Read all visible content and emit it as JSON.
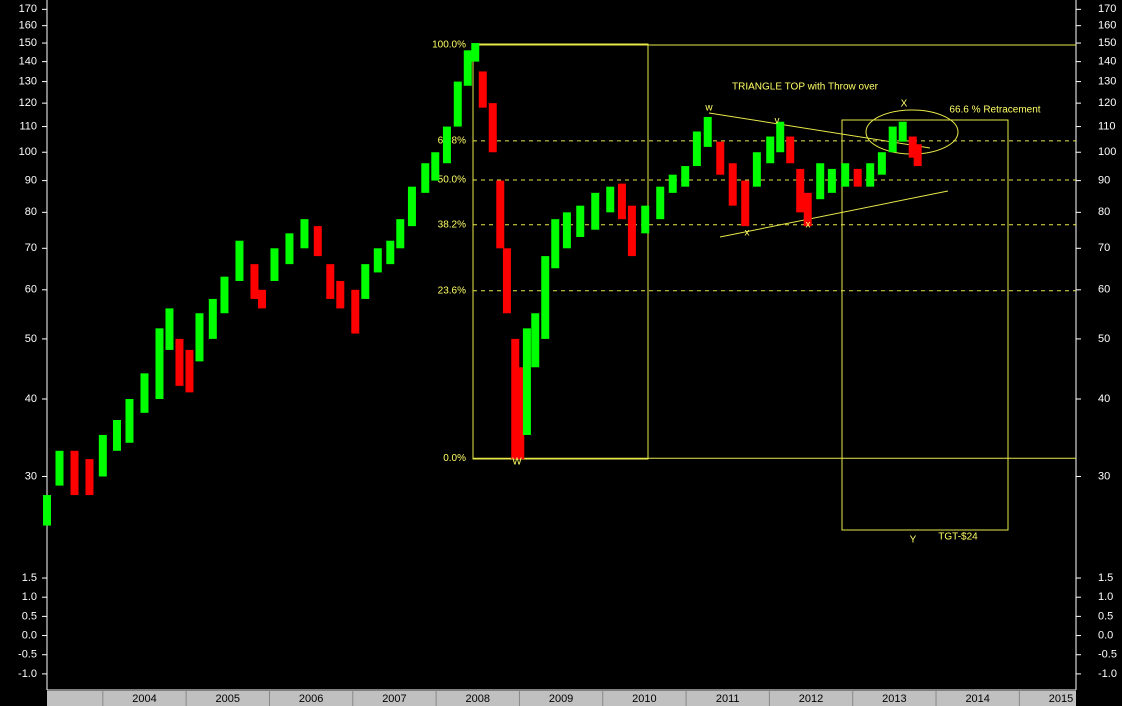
{
  "chart_data": [
    {
      "type": "ohlc",
      "log_scale": true,
      "up_color": "#00ff00",
      "down_color": "#ff0000",
      "annotation_color": "#ffff66",
      "xlim": [
        2003.33,
        2015.68
      ],
      "xticks": [
        2004,
        2005,
        2006,
        2007,
        2008,
        2009,
        2010,
        2011,
        2012,
        2013,
        2014,
        2015
      ],
      "ylim": [
        22,
        176
      ],
      "yticks": [
        30,
        40,
        50,
        60,
        70,
        80,
        90,
        100,
        110,
        120,
        130,
        140,
        150,
        160,
        170
      ],
      "x": [
        2003.33,
        2003.48,
        2003.66,
        2003.84,
        2004.0,
        2004.17,
        2004.32,
        2004.5,
        2004.68,
        2004.8,
        2004.92,
        2005.04,
        2005.16,
        2005.32,
        2005.46,
        2005.64,
        2005.82,
        2005.91,
        2006.06,
        2006.24,
        2006.42,
        2006.58,
        2006.73,
        2006.85,
        2007.03,
        2007.15,
        2007.3,
        2007.45,
        2007.57,
        2007.71,
        2007.87,
        2007.99,
        2008.13,
        2008.26,
        2008.38,
        2008.47,
        2008.56,
        2008.68,
        2008.77,
        2008.85,
        2008.95,
        2009.01,
        2009.09,
        2009.19,
        2009.31,
        2009.43,
        2009.57,
        2009.73,
        2009.91,
        2010.09,
        2010.23,
        2010.35,
        2010.51,
        2010.69,
        2010.84,
        2010.99,
        2011.13,
        2011.26,
        2011.41,
        2011.56,
        2011.71,
        2011.85,
        2012.01,
        2012.13,
        2012.25,
        2012.37,
        2012.46,
        2012.61,
        2012.75,
        2012.91,
        2013.06,
        2013.21,
        2013.35,
        2013.48,
        2013.6,
        2013.72,
        2013.78
      ],
      "high": [
        28,
        33,
        33,
        32,
        35,
        37,
        40,
        44,
        52,
        56,
        50,
        48,
        55,
        58,
        63,
        72,
        66,
        60,
        70,
        74,
        78,
        76,
        66,
        62,
        60,
        66,
        70,
        72,
        78,
        88,
        96,
        100,
        110,
        130,
        146,
        150,
        135,
        120,
        90,
        70,
        50,
        45,
        52,
        55,
        68,
        78,
        80,
        82,
        86,
        88,
        89,
        82,
        82,
        88,
        92,
        95,
        108,
        114,
        104,
        96,
        90,
        100,
        106,
        112,
        106,
        94,
        86,
        96,
        94,
        96,
        94,
        96,
        100,
        110,
        112,
        106,
        103
      ],
      "low": [
        25,
        29,
        28,
        28,
        30,
        33,
        34,
        38,
        40,
        48,
        42,
        41,
        46,
        50,
        55,
        62,
        58,
        56,
        62,
        66,
        70,
        68,
        58,
        56,
        51,
        58,
        64,
        66,
        70,
        76,
        86,
        90,
        96,
        110,
        128,
        140,
        118,
        100,
        70,
        55,
        32,
        32,
        35,
        45,
        50,
        65,
        70,
        73,
        75,
        80,
        78,
        68,
        74,
        78,
        86,
        88,
        95,
        102,
        92,
        82,
        76,
        88,
        96,
        100,
        96,
        80,
        76,
        84,
        86,
        88,
        88,
        88,
        92,
        100,
        104,
        98,
        95
      ],
      "fib_levels": [
        {
          "label": "100.0%",
          "value": 148.9
        },
        {
          "label": "61.8%",
          "value": 104.3
        },
        {
          "label": "50.0%",
          "value": 90.2
        },
        {
          "label": "38.2%",
          "value": 76.4
        },
        {
          "label": "23.6%",
          "value": 59.8
        },
        {
          "label": "0.0%",
          "value": 32.1
        }
      ],
      "annotations": [
        "TRIANGLE TOP with Throw over",
        "66.6 % Retracement",
        "w",
        "v",
        "X",
        "x",
        "x",
        "W",
        "Y",
        "TGT-$24"
      ]
    },
    {
      "type": "line",
      "ylim": [
        -1.42,
        1.84
      ],
      "yticks": [
        1.5,
        {
          "value": 1,
          "label": "1.0"
        },
        0.5,
        {
          "value": 0,
          "label": "0.0"
        },
        -0.5,
        {
          "value": -1,
          "label": "-1.0"
        }
      ]
    }
  ]
}
